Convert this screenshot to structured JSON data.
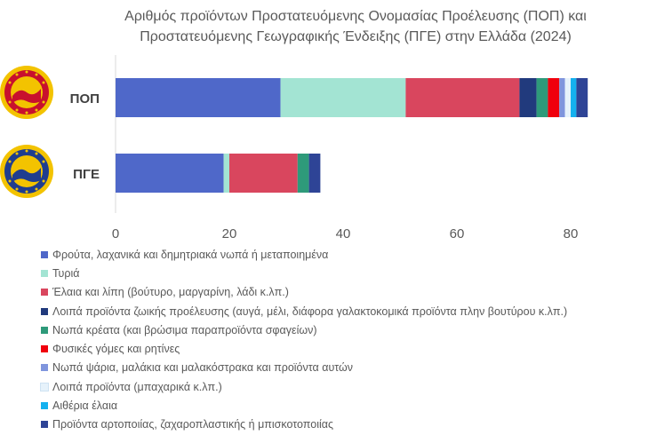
{
  "chart_data": {
    "type": "bar",
    "orientation": "horizontal",
    "stacked": true,
    "title": [
      "Αριθμός προϊόντων Προστατευόμενης Ονομασίας Προέλευσης (ΠΟΠ) και",
      "Προστατευόμενης Γεωγραφικής Ένδειξης (ΠΓΕ) στην Ελλάδα (2024)"
    ],
    "categories": [
      "ΠΟΠ",
      "ΠΓΕ"
    ],
    "xlim": [
      0,
      85
    ],
    "xticks": [
      "0",
      "20",
      "40",
      "60",
      "80"
    ],
    "xtick_values": [
      0,
      20,
      40,
      60,
      80
    ],
    "legend_position": "bottom",
    "series": [
      {
        "name": "Φρούτα, λαχανικά και δημητριακά νωπά ή μεταποιημένα",
        "color": "#4f68c9",
        "values": [
          29,
          19
        ]
      },
      {
        "name": "Τυριά",
        "color": "#a3e4d3",
        "values": [
          22,
          1
        ]
      },
      {
        "name": "Έλαια και λίπη (βούτυρο, μαργαρίνη, λάδι κ.λπ.)",
        "color": "#d9465e",
        "values": [
          20,
          12
        ]
      },
      {
        "name": "Λοιπά προϊόντα ζωικής προέλευσης (αυγά, μέλι, διάφορα γαλακτοκομικά προϊόντα πλην βουτύρου κ.λπ.)",
        "color": "#213a7d",
        "values": [
          3,
          0
        ]
      },
      {
        "name": "Νωπά κρέατα (και βρώσιμα παραπροϊόντα σφαγείων)",
        "color": "#2e9a7a",
        "values": [
          2,
          2
        ]
      },
      {
        "name": "Φυσικές γόμες και ρητίνες",
        "color": "#f0000d",
        "values": [
          2,
          0
        ]
      },
      {
        "name": "Νωπά ψάρια, μαλάκια και μαλακόστρακα και προϊόντα αυτών",
        "color": "#7f95dd",
        "values": [
          1,
          0
        ]
      },
      {
        "name": "Λοιπά προϊόντα (μπαχαρικά κ.λπ.)",
        "color": "#e6f2fb",
        "values": [
          1,
          0
        ]
      },
      {
        "name": "Αιθέρια έλαια",
        "color": "#14b1ef",
        "values": [
          1,
          0
        ]
      },
      {
        "name": "Προϊόντα αρτοποιίας, ζαχαροπλαστικής ή μπισκοτοποιίας",
        "color": "#2e4496",
        "values": [
          2,
          2
        ]
      }
    ]
  },
  "logos": [
    {
      "name": "pdo-logo",
      "colors": [
        "#c8102e",
        "#f3c300"
      ]
    },
    {
      "name": "pgi-logo",
      "colors": [
        "#1f3d8f",
        "#f3c300"
      ]
    }
  ]
}
